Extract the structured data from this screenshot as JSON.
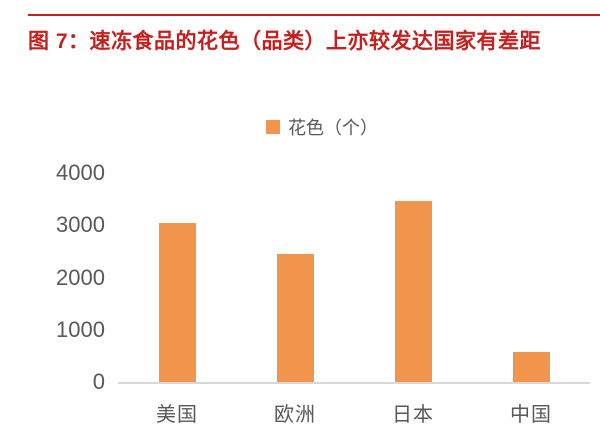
{
  "figure": {
    "title": "图 7：速冻食品的花色（品类）上亦较发达国家有差距"
  },
  "colors": {
    "title_red": "#C5201E",
    "bar_orange": "#F0954B",
    "axis_text": "#595959",
    "axis_line": "#D8D8D8"
  },
  "chart_data": {
    "type": "bar",
    "title": "",
    "xlabel": "",
    "ylabel": "",
    "legend": {
      "label": "花色（个）",
      "color": "#F0954B",
      "position": "top-center"
    },
    "categories": [
      "美国",
      "欧洲",
      "日本",
      "中国"
    ],
    "values": [
      3050,
      2450,
      3470,
      570
    ],
    "ylim": [
      0,
      4000
    ],
    "yticks": [
      0,
      1000,
      2000,
      3000,
      4000
    ],
    "grid": false
  }
}
